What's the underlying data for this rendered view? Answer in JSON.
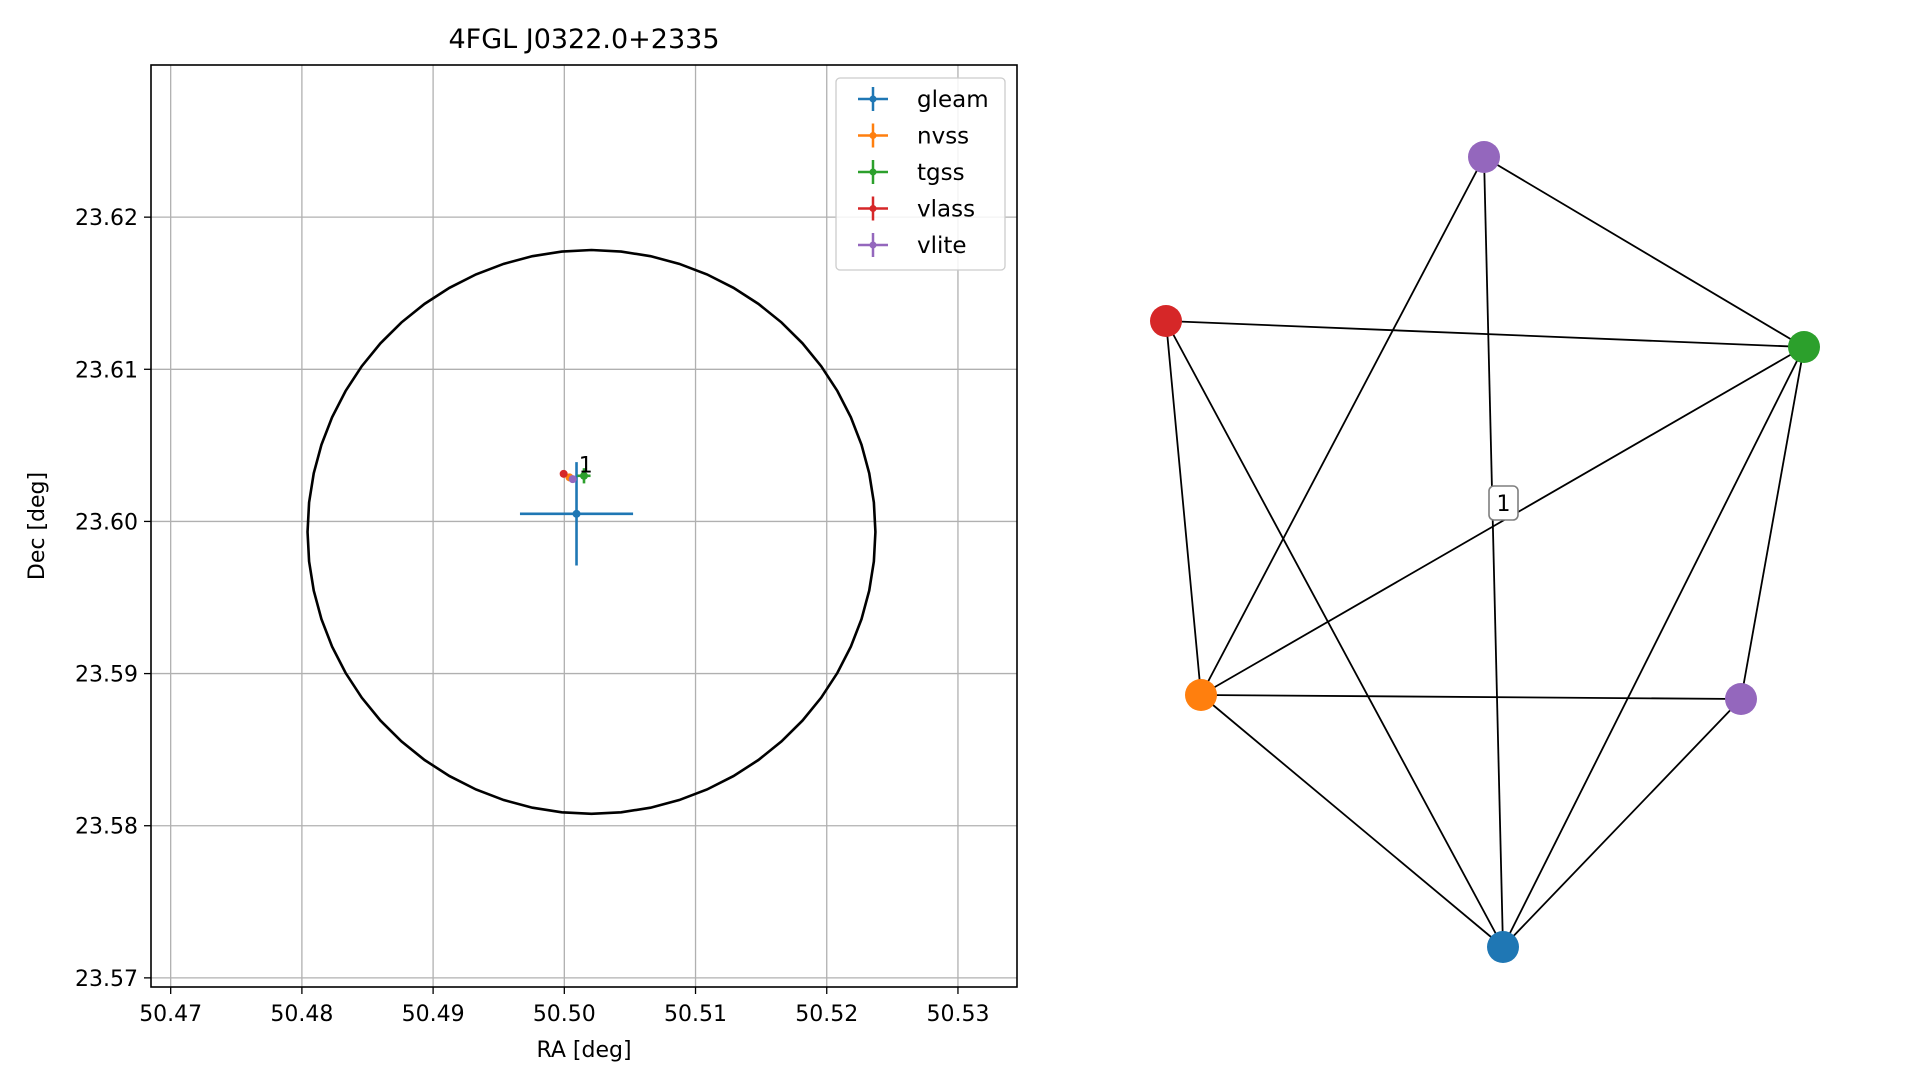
{
  "chart_data": [
    {
      "type": "scatter",
      "title": "4FGL J0322.0+2335",
      "xlabel": "RA [deg]",
      "ylabel": "Dec [deg]",
      "xlim": [
        50.4685,
        50.5345
      ],
      "ylim": [
        23.5694,
        23.63
      ],
      "xticks": [
        50.47,
        50.48,
        50.49,
        50.5,
        50.51,
        50.52,
        50.53
      ],
      "xtick_labels": [
        "50.47",
        "50.48",
        "50.49",
        "50.50",
        "50.51",
        "50.52",
        "50.53"
      ],
      "yticks": [
        23.57,
        23.58,
        23.59,
        23.6,
        23.61,
        23.62
      ],
      "ytick_labels": [
        "23.57",
        "23.58",
        "23.59",
        "23.60",
        "23.61",
        "23.62"
      ],
      "grid": true,
      "legend_position": "top-right",
      "ellipse": {
        "center_ra": 50.50207,
        "center_dec": 23.59931,
        "semi_axis_ra_deg": 0.02164,
        "semi_axis_dec_deg": 0.01853,
        "color": "#000000"
      },
      "series": [
        {
          "name": "gleam",
          "color": "#1f77b4",
          "points": [
            {
              "ra": 50.50093,
              "dec": 23.6005,
              "ra_err": 0.00431,
              "dec_err": 0.0034
            }
          ]
        },
        {
          "name": "nvss",
          "color": "#ff7f0e",
          "points": [
            {
              "ra": 50.50039,
              "dec": 23.6029,
              "ra_err": 0.00025,
              "dec_err": 0.00025
            }
          ]
        },
        {
          "name": "tgss",
          "color": "#2ca02c",
          "points": [
            {
              "ra": 50.5015,
              "dec": 23.603,
              "ra_err": 0.0005,
              "dec_err": 0.0005
            }
          ]
        },
        {
          "name": "vlass",
          "color": "#d62728",
          "points": [
            {
              "ra": 50.49995,
              "dec": 23.60313,
              "ra_err": 5e-05,
              "dec_err": 5e-05
            }
          ]
        },
        {
          "name": "vlite",
          "color": "#9467bd",
          "points": [
            {
              "ra": 50.50064,
              "dec": 23.60278,
              "ra_err": 0.0002,
              "dec_err": 0.0002
            }
          ]
        }
      ],
      "annotations": [
        {
          "text": "1",
          "ra": 50.5011,
          "dec": 23.60323
        }
      ]
    },
    {
      "type": "graph",
      "nodes": [
        {
          "id": "gleam",
          "color": "#1f77b4"
        },
        {
          "id": "nvss",
          "color": "#ff7f0e"
        },
        {
          "id": "tgss",
          "color": "#2ca02c"
        },
        {
          "id": "vlass",
          "color": "#d62728"
        },
        {
          "id": "vlite_a",
          "color": "#9467bd"
        },
        {
          "id": "vlite_b",
          "color": "#9467bd"
        }
      ],
      "edges": [
        [
          "vlite_a",
          "tgss"
        ],
        [
          "vlite_a",
          "nvss"
        ],
        [
          "vlite_a",
          "gleam"
        ],
        [
          "vlass",
          "tgss"
        ],
        [
          "vlass",
          "nvss"
        ],
        [
          "vlass",
          "gleam"
        ],
        [
          "tgss",
          "nvss"
        ],
        [
          "tgss",
          "gleam"
        ],
        [
          "tgss",
          "vlite_b"
        ],
        [
          "nvss",
          "vlite_b"
        ],
        [
          "nvss",
          "gleam"
        ],
        [
          "vlite_b",
          "gleam"
        ]
      ],
      "labels": [
        {
          "text": "1",
          "edge_color": "#7f7f7f"
        }
      ]
    }
  ]
}
